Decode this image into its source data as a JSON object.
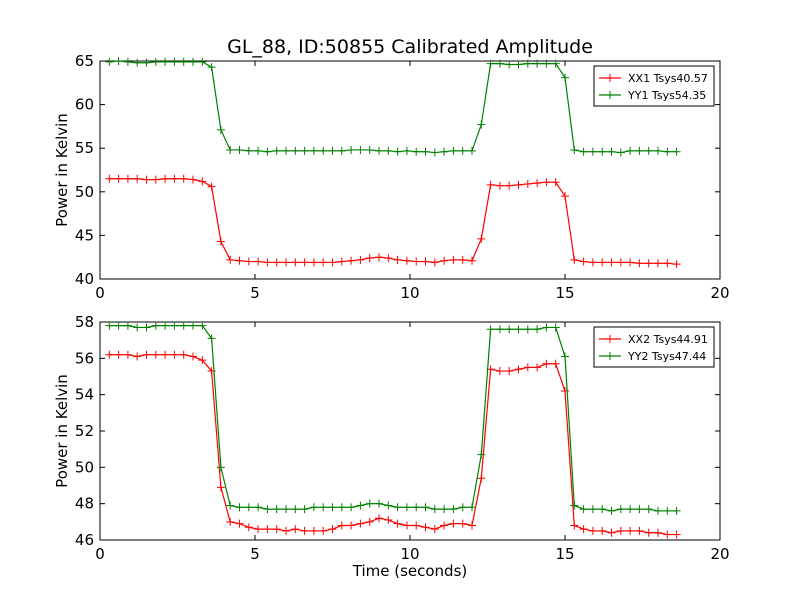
{
  "title": "GL_88, ID:50855 Calibrated Amplitude",
  "chart_data": [
    {
      "type": "line",
      "title": "GL_88, ID:50855 Calibrated Amplitude",
      "xlabel": "",
      "ylabel": "Power in Kelvin",
      "xlim": [
        0,
        20
      ],
      "ylim": [
        40,
        65
      ],
      "xticks": [
        0,
        5,
        10,
        15,
        20
      ],
      "yticks": [
        40,
        45,
        50,
        55,
        60,
        65
      ],
      "grid": false,
      "legend_position": "top-right",
      "x": [
        0.3,
        0.6,
        0.9,
        1.2,
        1.5,
        1.8,
        2.1,
        2.4,
        2.7,
        3.0,
        3.3,
        3.6,
        3.9,
        4.2,
        4.5,
        4.8,
        5.1,
        5.4,
        5.7,
        6.0,
        6.3,
        6.6,
        6.9,
        7.2,
        7.5,
        7.8,
        8.1,
        8.4,
        8.7,
        9.0,
        9.3,
        9.6,
        9.9,
        10.2,
        10.5,
        10.8,
        11.1,
        11.4,
        11.7,
        12.0,
        12.3,
        12.6,
        12.9,
        13.2,
        13.5,
        13.8,
        14.1,
        14.4,
        14.7,
        15.0,
        15.3,
        15.6,
        15.9,
        16.2,
        16.5,
        16.8,
        17.1,
        17.4,
        17.7,
        18.0,
        18.3,
        18.6
      ],
      "series": [
        {
          "name": "XX1 Tsys40.57",
          "color": "#ff0000",
          "values": [
            51.5,
            51.5,
            51.5,
            51.5,
            51.4,
            51.4,
            51.5,
            51.5,
            51.5,
            51.4,
            51.2,
            50.6,
            44.3,
            42.2,
            42.1,
            42.0,
            42.0,
            41.9,
            41.9,
            41.9,
            41.9,
            41.9,
            41.9,
            41.9,
            41.9,
            42.0,
            42.1,
            42.2,
            42.4,
            42.5,
            42.4,
            42.2,
            42.1,
            42.0,
            42.0,
            41.9,
            42.1,
            42.2,
            42.2,
            42.1,
            44.6,
            50.8,
            50.7,
            50.7,
            50.8,
            50.9,
            51.0,
            51.1,
            51.1,
            49.5,
            42.2,
            42.0,
            41.9,
            41.9,
            41.9,
            41.9,
            41.9,
            41.8,
            41.8,
            41.8,
            41.8,
            41.7
          ]
        },
        {
          "name": "YY1 Tsys54.35",
          "color": "#008000",
          "values": [
            64.9,
            65.0,
            64.9,
            64.8,
            64.8,
            64.9,
            64.9,
            64.9,
            64.9,
            64.9,
            64.9,
            64.3,
            57.1,
            54.8,
            54.8,
            54.7,
            54.7,
            54.6,
            54.7,
            54.7,
            54.7,
            54.7,
            54.7,
            54.7,
            54.7,
            54.7,
            54.8,
            54.8,
            54.8,
            54.7,
            54.7,
            54.6,
            54.7,
            54.6,
            54.6,
            54.5,
            54.6,
            54.7,
            54.7,
            54.7,
            57.7,
            64.7,
            64.7,
            64.6,
            64.6,
            64.7,
            64.7,
            64.7,
            64.7,
            63.1,
            54.8,
            54.6,
            54.6,
            54.6,
            54.6,
            54.5,
            54.7,
            54.7,
            54.7,
            54.7,
            54.6,
            54.6
          ]
        }
      ]
    },
    {
      "type": "line",
      "title": "",
      "xlabel": "Time (seconds)",
      "ylabel": "Power in Kelvin",
      "xlim": [
        0,
        20
      ],
      "ylim": [
        46,
        58
      ],
      "xticks": [
        0,
        5,
        10,
        15,
        20
      ],
      "yticks": [
        46,
        48,
        50,
        52,
        54,
        56,
        58
      ],
      "grid": false,
      "legend_position": "top-right",
      "x": [
        0.3,
        0.6,
        0.9,
        1.2,
        1.5,
        1.8,
        2.1,
        2.4,
        2.7,
        3.0,
        3.3,
        3.6,
        3.9,
        4.2,
        4.5,
        4.8,
        5.1,
        5.4,
        5.7,
        6.0,
        6.3,
        6.6,
        6.9,
        7.2,
        7.5,
        7.8,
        8.1,
        8.4,
        8.7,
        9.0,
        9.3,
        9.6,
        9.9,
        10.2,
        10.5,
        10.8,
        11.1,
        11.4,
        11.7,
        12.0,
        12.3,
        12.6,
        12.9,
        13.2,
        13.5,
        13.8,
        14.1,
        14.4,
        14.7,
        15.0,
        15.3,
        15.6,
        15.9,
        16.2,
        16.5,
        16.8,
        17.1,
        17.4,
        17.7,
        18.0,
        18.3,
        18.6
      ],
      "series": [
        {
          "name": "XX2 Tsys44.91",
          "color": "#ff0000",
          "values": [
            56.2,
            56.2,
            56.2,
            56.1,
            56.2,
            56.2,
            56.2,
            56.2,
            56.2,
            56.1,
            55.9,
            55.3,
            48.9,
            47.0,
            46.9,
            46.7,
            46.6,
            46.6,
            46.6,
            46.5,
            46.6,
            46.5,
            46.5,
            46.5,
            46.6,
            46.8,
            46.8,
            46.9,
            47.0,
            47.2,
            47.1,
            46.9,
            46.8,
            46.8,
            46.7,
            46.6,
            46.8,
            46.9,
            46.9,
            46.8,
            49.4,
            55.4,
            55.3,
            55.3,
            55.4,
            55.5,
            55.5,
            55.7,
            55.7,
            54.2,
            46.8,
            46.6,
            46.5,
            46.5,
            46.4,
            46.5,
            46.5,
            46.5,
            46.4,
            46.4,
            46.3,
            46.3
          ]
        },
        {
          "name": "YY2 Tsys47.44",
          "color": "#008000",
          "values": [
            57.8,
            57.8,
            57.8,
            57.7,
            57.7,
            57.8,
            57.8,
            57.8,
            57.8,
            57.8,
            57.8,
            57.1,
            50.0,
            47.9,
            47.8,
            47.8,
            47.8,
            47.7,
            47.7,
            47.7,
            47.7,
            47.7,
            47.8,
            47.8,
            47.8,
            47.8,
            47.8,
            47.9,
            48.0,
            48.0,
            47.9,
            47.8,
            47.8,
            47.8,
            47.8,
            47.7,
            47.7,
            47.7,
            47.8,
            47.8,
            50.7,
            57.6,
            57.6,
            57.6,
            57.6,
            57.6,
            57.6,
            57.7,
            57.7,
            56.1,
            47.9,
            47.7,
            47.7,
            47.7,
            47.6,
            47.7,
            47.7,
            47.7,
            47.7,
            47.6,
            47.6,
            47.6
          ]
        }
      ]
    }
  ]
}
